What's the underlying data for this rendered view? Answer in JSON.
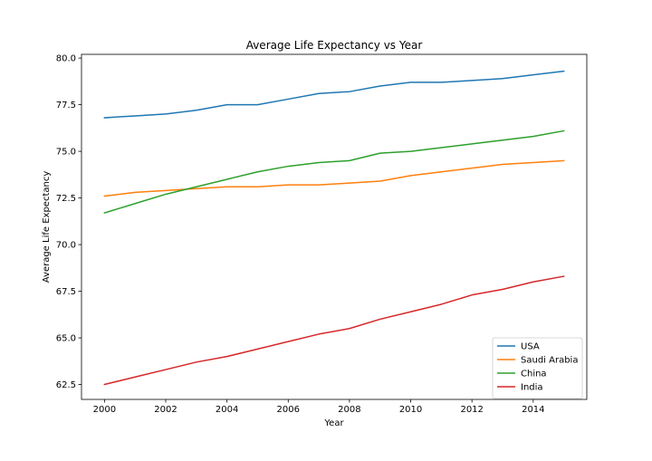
{
  "chart_data": {
    "type": "line",
    "title": "Average Life Expectancy vs Year",
    "xlabel": "Year",
    "ylabel": "Average Life Expectancy",
    "xlim": [
      1999.25,
      2015.75
    ],
    "ylim": [
      61.7,
      80.2
    ],
    "x_ticks": [
      2000,
      2002,
      2004,
      2006,
      2008,
      2010,
      2012,
      2014
    ],
    "y_ticks": [
      62.5,
      65.0,
      67.5,
      70.0,
      72.5,
      75.0,
      77.5,
      80.0
    ],
    "x_tick_labels": [
      "2000",
      "2002",
      "2004",
      "2006",
      "2008",
      "2010",
      "2012",
      "2014"
    ],
    "y_tick_labels": [
      "62.5",
      "65.0",
      "67.5",
      "70.0",
      "72.5",
      "75.0",
      "77.5",
      "80.0"
    ],
    "grid": false,
    "legend_position": "bottom-right",
    "x": [
      2000,
      2001,
      2002,
      2003,
      2004,
      2005,
      2006,
      2007,
      2008,
      2009,
      2010,
      2011,
      2012,
      2013,
      2014,
      2015
    ],
    "series": [
      {
        "name": "USA",
        "color": "#1f77b4",
        "values": [
          76.8,
          76.9,
          77.0,
          77.2,
          77.5,
          77.5,
          77.8,
          78.1,
          78.2,
          78.5,
          78.7,
          78.7,
          78.8,
          78.9,
          79.1,
          79.3
        ]
      },
      {
        "name": "Saudi Arabia",
        "color": "#ff7f0e",
        "values": [
          72.6,
          72.8,
          72.9,
          73.0,
          73.1,
          73.1,
          73.2,
          73.2,
          73.3,
          73.4,
          73.7,
          73.9,
          74.1,
          74.3,
          74.4,
          74.5
        ]
      },
      {
        "name": "China",
        "color": "#2ca02c",
        "values": [
          71.7,
          72.2,
          72.7,
          73.1,
          73.5,
          73.9,
          74.2,
          74.4,
          74.5,
          74.9,
          75.0,
          75.2,
          75.4,
          75.6,
          75.8,
          76.1
        ]
      },
      {
        "name": "India",
        "color": "#d62728",
        "values": [
          62.5,
          62.9,
          63.3,
          63.7,
          64.0,
          64.4,
          64.8,
          65.2,
          65.5,
          66.0,
          66.4,
          66.8,
          67.3,
          67.6,
          68.0,
          68.3
        ]
      }
    ]
  }
}
